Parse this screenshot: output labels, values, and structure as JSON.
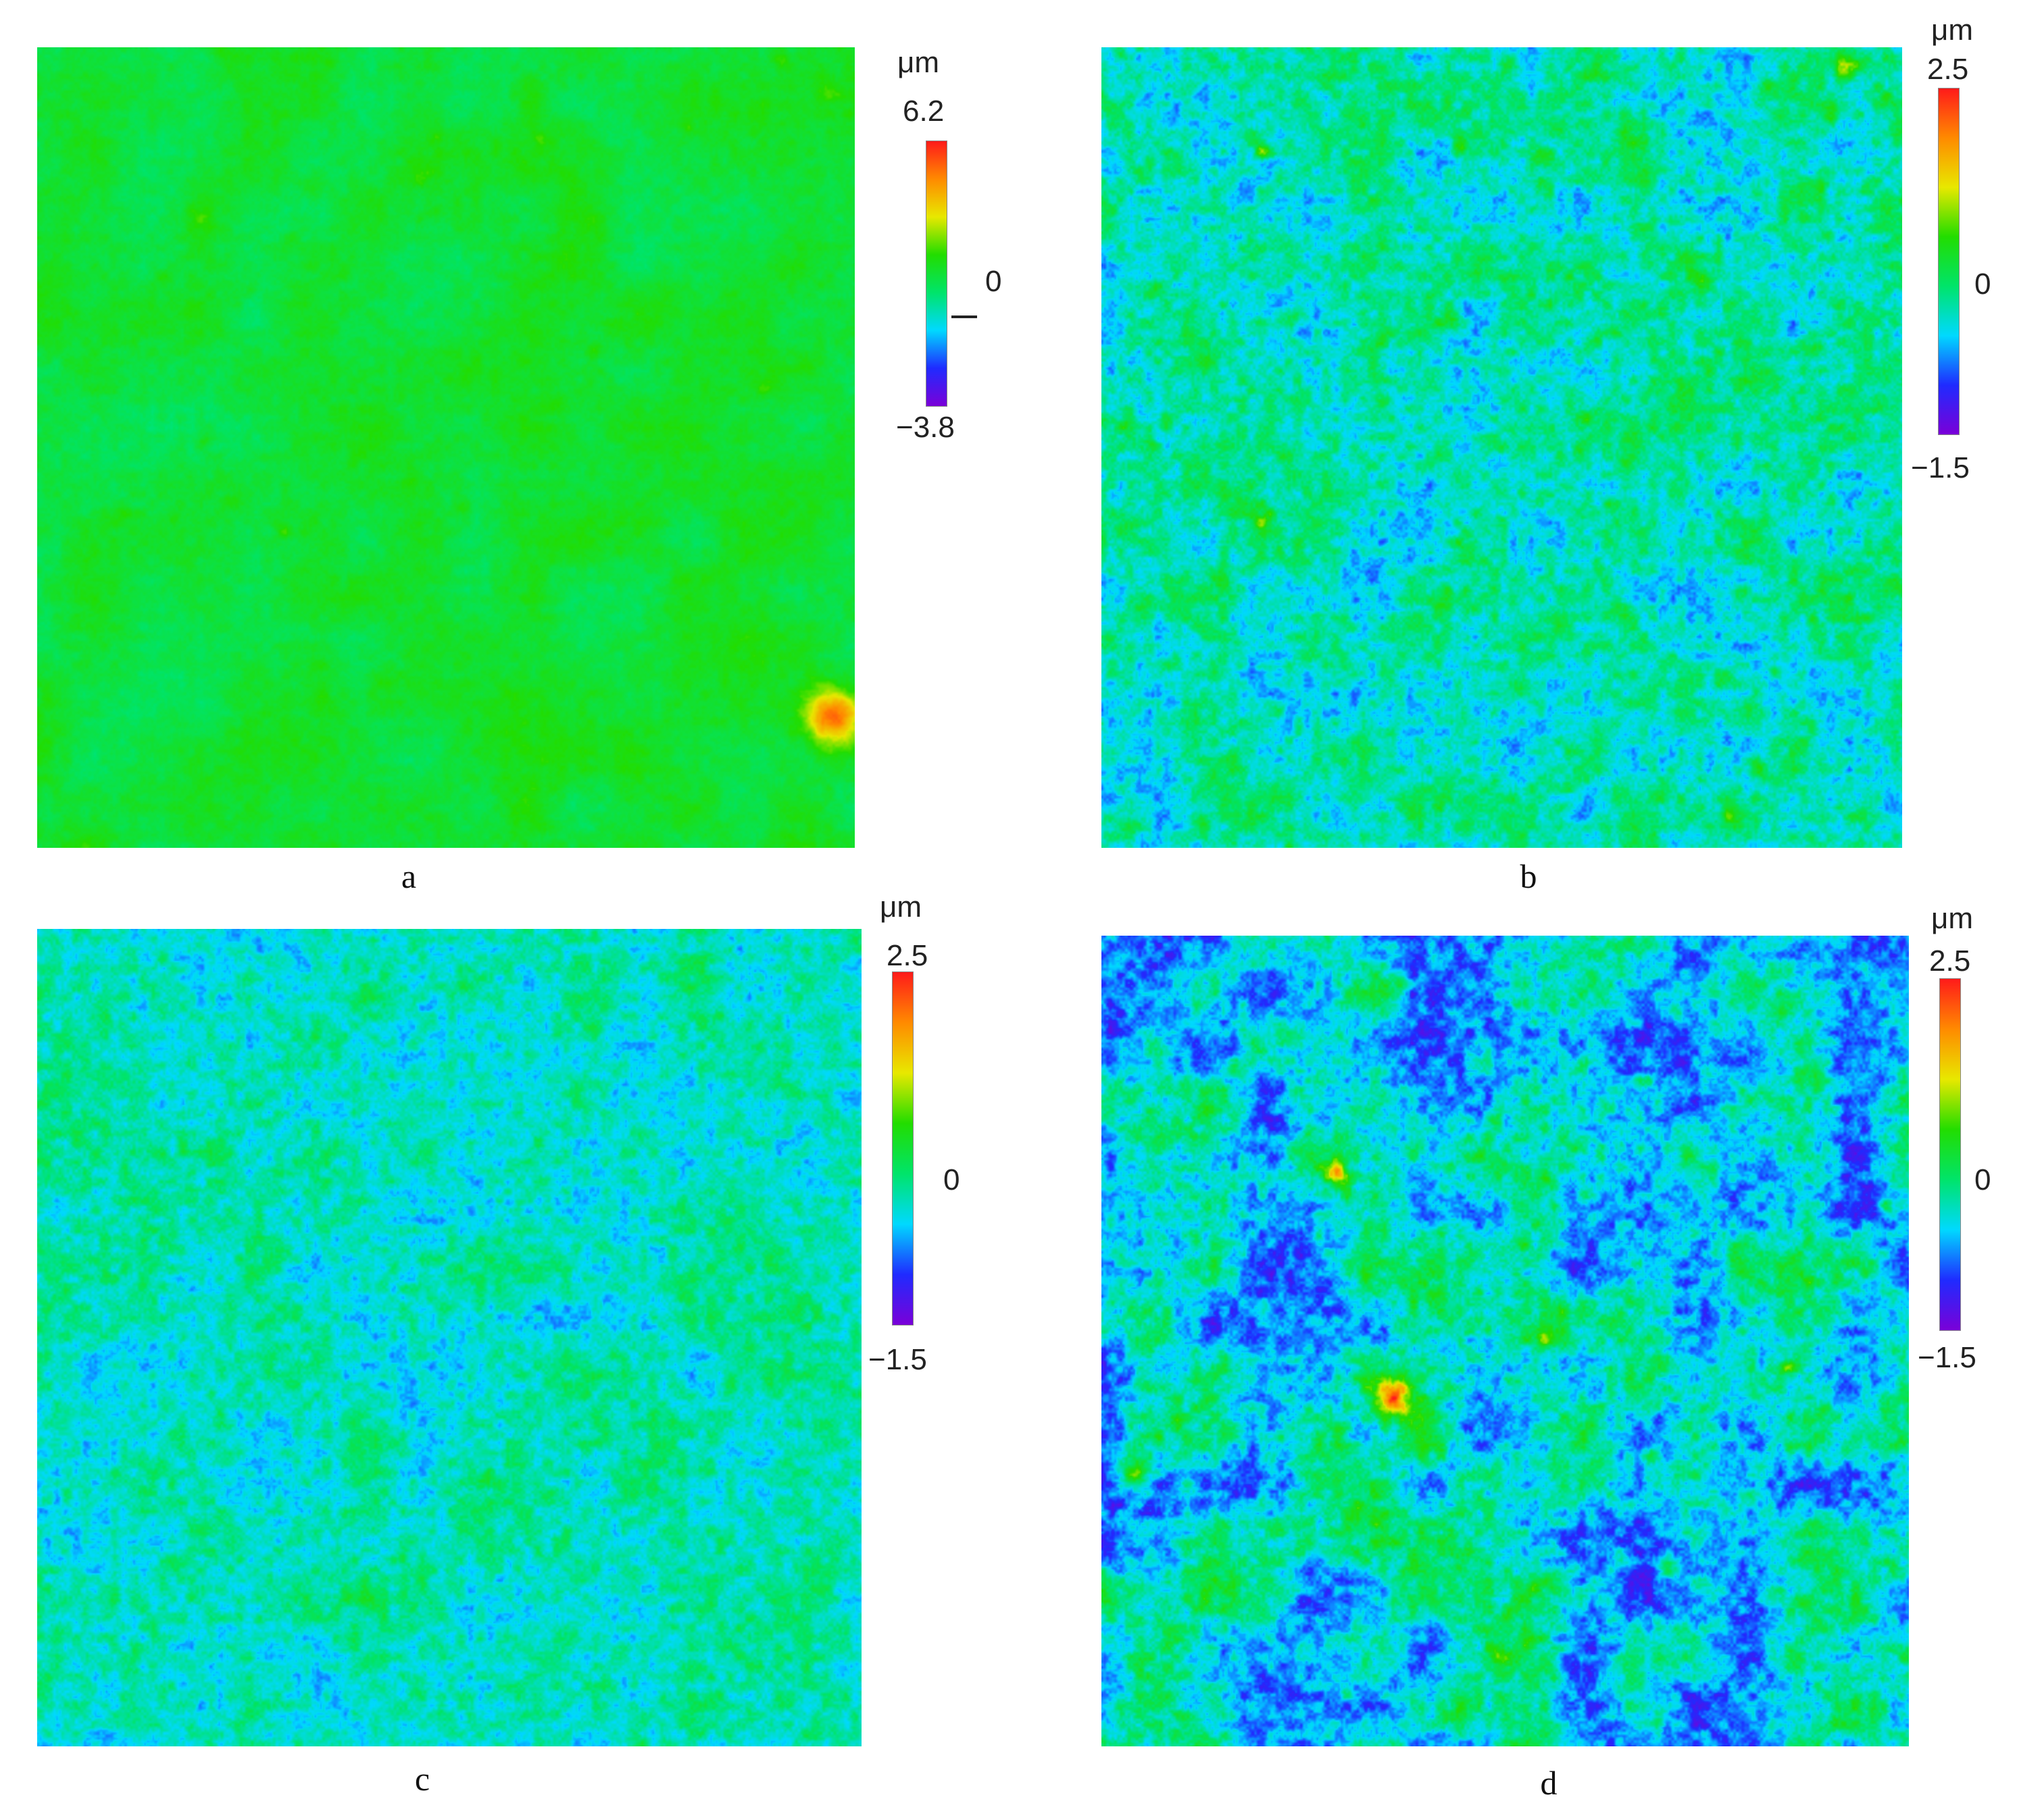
{
  "panels": [
    {
      "label": "a",
      "colorbar": {
        "unit": "μm",
        "max": "6.2",
        "zero": "0",
        "min": "−3.8",
        "vmax": 6.2,
        "vmin": -3.8
      }
    },
    {
      "label": "b",
      "colorbar": {
        "unit": "μm",
        "max": "2.5",
        "zero": "0",
        "min": "−1.5",
        "vmax": 2.5,
        "vmin": -1.5
      }
    },
    {
      "label": "c",
      "colorbar": {
        "unit": "μm",
        "max": "2.5",
        "zero": "0",
        "min": "−1.5",
        "vmax": 2.5,
        "vmin": -1.5
      }
    },
    {
      "label": "d",
      "colorbar": {
        "unit": "μm",
        "max": "2.5",
        "zero": "0",
        "min": "−1.5",
        "vmax": 2.5,
        "vmin": -1.5
      }
    }
  ],
  "colors": {
    "scale": [
      "#7a00d8",
      "#1f2bff",
      "#00d9ff",
      "#00e46a",
      "#22dd00",
      "#e8e800",
      "#ff8a00",
      "#ff1a1a"
    ]
  }
}
